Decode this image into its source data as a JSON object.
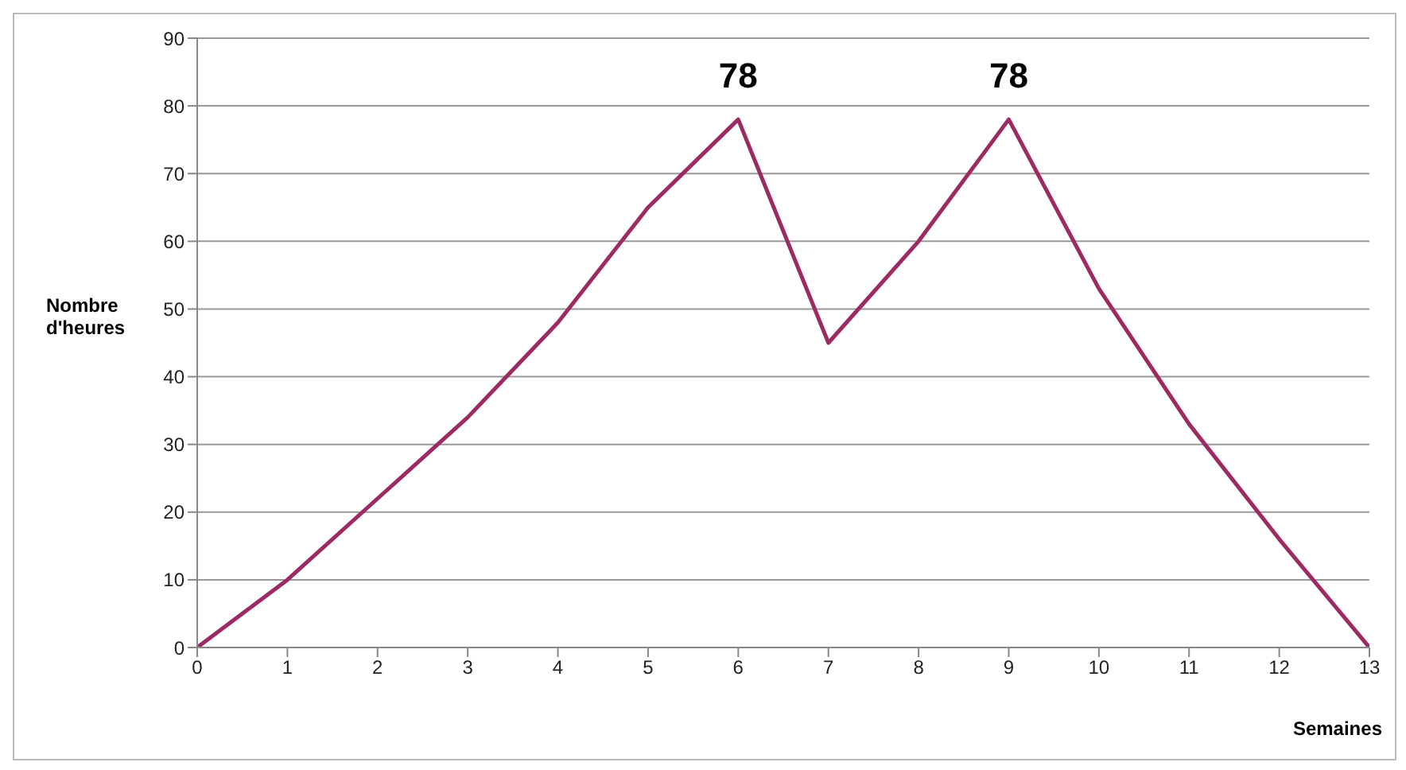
{
  "chart_data": {
    "type": "line",
    "xlabel": "Semaines",
    "ylabel": "Nombre d'heures",
    "x": [
      0,
      1,
      2,
      3,
      4,
      5,
      6,
      7,
      8,
      9,
      10,
      11,
      12,
      13
    ],
    "series": [
      {
        "color": "#9b2b62",
        "values": [
          0,
          10,
          22,
          34,
          48,
          65,
          78,
          45,
          60,
          78,
          53,
          33,
          16,
          0
        ],
        "value_labels": [
          null,
          null,
          null,
          null,
          null,
          null,
          "78",
          null,
          null,
          "78",
          null,
          null,
          null,
          null
        ]
      }
    ],
    "xlim": [
      0,
      13
    ],
    "xticks": [
      0,
      1,
      2,
      3,
      4,
      5,
      6,
      7,
      8,
      9,
      10,
      11,
      12,
      13
    ],
    "ylim": [
      0,
      90
    ],
    "yticks": [
      0,
      10,
      20,
      30,
      40,
      50,
      60,
      70,
      80,
      90
    ],
    "grid": "y",
    "legend": false,
    "marker": "none",
    "line_style": "solid"
  }
}
